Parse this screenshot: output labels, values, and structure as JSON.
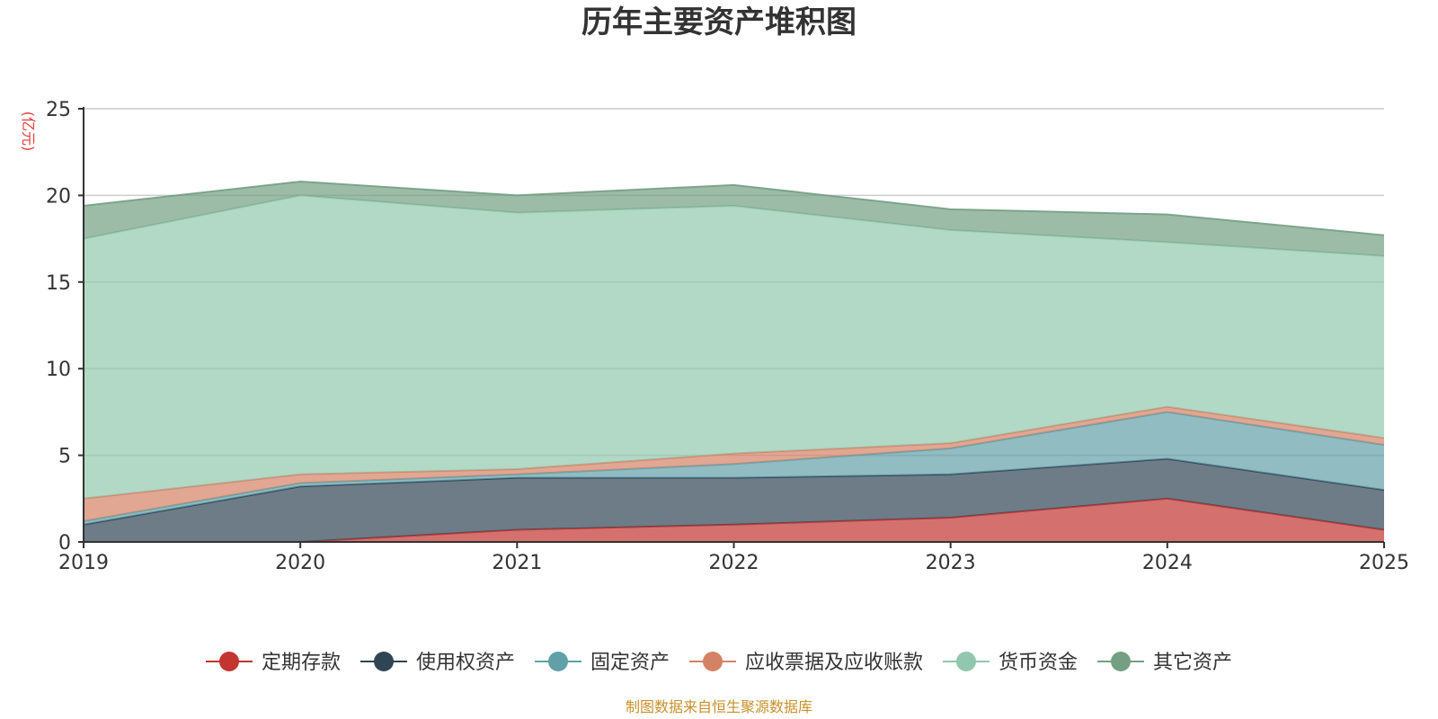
{
  "chart_data": {
    "type": "area",
    "stacked": true,
    "title": "历年主要资产堆积图",
    "ylabel": "(亿元)",
    "xlabel": "",
    "categories": [
      "2019",
      "2020",
      "2021",
      "2022",
      "2023",
      "2024",
      "2025"
    ],
    "ylim": [
      0,
      25
    ],
    "yticks": [
      0,
      5,
      10,
      15,
      20,
      25
    ],
    "grid": true,
    "legend_position": "bottom",
    "series": [
      {
        "name": "定期存款",
        "color": "#c23531",
        "values": [
          0.0,
          0.0,
          0.7,
          1.0,
          1.4,
          2.5,
          0.7
        ]
      },
      {
        "name": "使用权资产",
        "color": "#2f4554",
        "values": [
          1.0,
          3.2,
          3.0,
          2.7,
          2.5,
          2.3,
          2.3
        ]
      },
      {
        "name": "固定资产",
        "color": "#61a0a8",
        "values": [
          0.2,
          0.2,
          0.2,
          0.8,
          1.5,
          2.7,
          2.6
        ]
      },
      {
        "name": "应收票据及应收账款",
        "color": "#d48265",
        "values": [
          1.3,
          0.5,
          0.3,
          0.6,
          0.3,
          0.3,
          0.4
        ]
      },
      {
        "name": "货币资金",
        "color": "#91c7ae",
        "values": [
          15.0,
          16.1,
          14.8,
          14.3,
          12.3,
          9.5,
          10.5
        ]
      },
      {
        "name": "其它资产",
        "color": "#749f83",
        "values": [
          1.9,
          0.8,
          1.0,
          1.2,
          1.2,
          1.6,
          1.2
        ]
      }
    ]
  },
  "footer": {
    "source": "制图数据来自恒生聚源数据库"
  }
}
